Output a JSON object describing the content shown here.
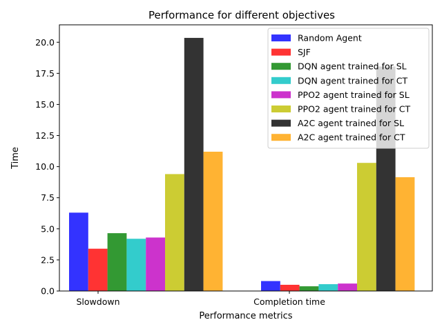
{
  "chart_data": {
    "type": "bar",
    "title": "Performance for different objectives",
    "xlabel": "Performance metrics",
    "ylabel": "Time",
    "categories": [
      "Slowdown",
      "Completion time"
    ],
    "ylim": [
      0,
      21.4
    ],
    "yticks": [
      "0.0",
      "2.5",
      "5.0",
      "7.5",
      "10.0",
      "12.5",
      "15.0",
      "17.5",
      "20.0"
    ],
    "ytick_values": [
      0,
      2.5,
      5,
      7.5,
      10,
      12.5,
      15,
      17.5,
      20
    ],
    "grid": false,
    "legend_position": "top-right",
    "series": [
      {
        "name": "Random Agent",
        "color": "#3333ff",
        "values": [
          6.3,
          0.8
        ]
      },
      {
        "name": "SJF",
        "color": "#ff3333",
        "values": [
          3.4,
          0.5
        ]
      },
      {
        "name": "DQN agent trained for SL",
        "color": "#339933",
        "values": [
          4.65,
          0.38
        ]
      },
      {
        "name": "DQN agent trained for CT",
        "color": "#33cccc",
        "values": [
          4.2,
          0.55
        ]
      },
      {
        "name": "PPO2 agent trained for SL",
        "color": "#cc33cc",
        "values": [
          4.3,
          0.6
        ]
      },
      {
        "name": "PPO2 agent trained for CT",
        "color": "#cccc33",
        "values": [
          9.4,
          10.3
        ]
      },
      {
        "name": "A2C agent trained for SL",
        "color": "#333333",
        "values": [
          20.35,
          18.05
        ]
      },
      {
        "name": "A2C agent trained for CT",
        "color": "#ffb333",
        "values": [
          11.2,
          9.15
        ]
      }
    ]
  }
}
